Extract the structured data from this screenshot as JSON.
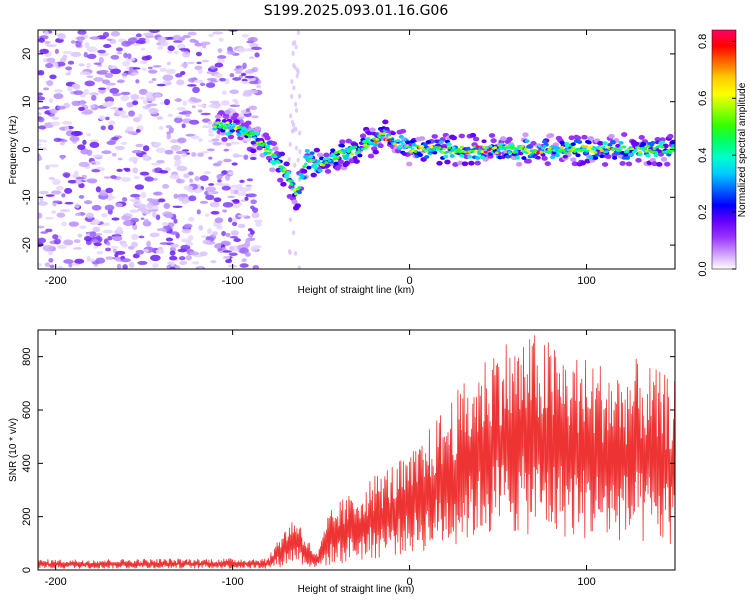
{
  "figure": {
    "title": "S199.2025.093.01.16.G06"
  },
  "chart_data": [
    {
      "type": "heatmap",
      "xlabel": "Height of straight line (km)",
      "ylabel": "Frequency (Hz)",
      "xlim": [
        -210,
        150
      ],
      "ylim": [
        -25,
        25
      ],
      "xticks": [
        -200,
        -100,
        0,
        100
      ],
      "yticks": [
        -20,
        -10,
        0,
        10,
        20
      ],
      "grid": false,
      "colorbar": {
        "label": "Normalized spectral amplitude",
        "range": [
          0.0,
          0.84
        ],
        "ticks": [
          "0.0",
          "0.2",
          "0.4",
          "0.6",
          "0.8"
        ],
        "colormap": [
          "#ffffff",
          "#cc99ff",
          "#9933ff",
          "#6600ff",
          "#0000ff",
          "#0066ff",
          "#00ccff",
          "#00ffcc",
          "#00ff66",
          "#33ff00",
          "#99ff00",
          "#ffff00",
          "#ffcc00",
          "#ff6600",
          "#ff0000",
          "#ff0066"
        ]
      },
      "ridge": [
        {
          "x": -110,
          "y": 5
        },
        {
          "x": -100,
          "y": 5
        },
        {
          "x": -90,
          "y": 3
        },
        {
          "x": -80,
          "y": 0
        },
        {
          "x": -70,
          "y": -5
        },
        {
          "x": -64,
          "y": -10
        },
        {
          "x": -58,
          "y": -2
        },
        {
          "x": -50,
          "y": -3
        },
        {
          "x": -40,
          "y": -1
        },
        {
          "x": -30,
          "y": 0
        },
        {
          "x": -20,
          "y": 2
        },
        {
          "x": -15,
          "y": 3
        },
        {
          "x": -5,
          "y": 1
        },
        {
          "x": 0,
          "y": 0
        },
        {
          "x": 20,
          "y": 0
        },
        {
          "x": 40,
          "y": 0
        },
        {
          "x": 60,
          "y": 0
        },
        {
          "x": 80,
          "y": 0
        },
        {
          "x": 100,
          "y": 0
        },
        {
          "x": 120,
          "y": 0
        },
        {
          "x": 150,
          "y": 0
        }
      ],
      "noise_region": {
        "x": [
          -210,
          -85
        ],
        "y": [
          -25,
          25
        ]
      },
      "peak_amplitude": 0.84
    },
    {
      "type": "line",
      "xlabel": "Height of straight line (km)",
      "ylabel": "SNR (10 * v/v)",
      "xlim": [
        -210,
        150
      ],
      "ylim": [
        0,
        900
      ],
      "xticks": [
        -200,
        -100,
        0,
        100
      ],
      "yticks": [
        0,
        200,
        400,
        600,
        800
      ],
      "grid": false,
      "series": [
        {
          "color": "#ee3333",
          "envelope": [
            {
              "x": -210,
              "low": 5,
              "high": 40
            },
            {
              "x": -80,
              "low": 5,
              "high": 45
            },
            {
              "x": -72,
              "low": 10,
              "high": 150
            },
            {
              "x": -64,
              "low": 30,
              "high": 210
            },
            {
              "x": -58,
              "low": 10,
              "high": 120
            },
            {
              "x": -52,
              "low": 8,
              "high": 60
            },
            {
              "x": -46,
              "low": 15,
              "high": 210
            },
            {
              "x": -40,
              "low": 20,
              "high": 260
            },
            {
              "x": -30,
              "low": 30,
              "high": 300
            },
            {
              "x": -20,
              "low": 40,
              "high": 360
            },
            {
              "x": -10,
              "low": 50,
              "high": 400
            },
            {
              "x": 0,
              "low": 60,
              "high": 430
            },
            {
              "x": 10,
              "low": 70,
              "high": 520
            },
            {
              "x": 20,
              "low": 80,
              "high": 620
            },
            {
              "x": 30,
              "low": 100,
              "high": 700
            },
            {
              "x": 40,
              "low": 120,
              "high": 780
            },
            {
              "x": 50,
              "low": 130,
              "high": 880
            },
            {
              "x": 60,
              "low": 130,
              "high": 860
            },
            {
              "x": 70,
              "low": 130,
              "high": 890
            },
            {
              "x": 80,
              "low": 120,
              "high": 860
            },
            {
              "x": 90,
              "low": 120,
              "high": 820
            },
            {
              "x": 100,
              "low": 110,
              "high": 800
            },
            {
              "x": 110,
              "low": 100,
              "high": 780
            },
            {
              "x": 120,
              "low": 100,
              "high": 760
            },
            {
              "x": 130,
              "low": 90,
              "high": 800
            },
            {
              "x": 140,
              "low": 90,
              "high": 750
            },
            {
              "x": 150,
              "low": 90,
              "high": 720
            }
          ]
        }
      ]
    }
  ]
}
